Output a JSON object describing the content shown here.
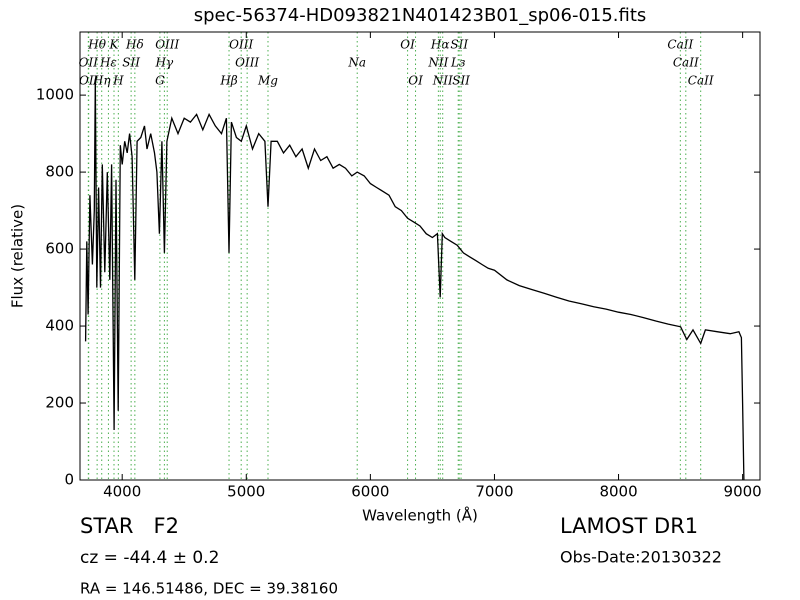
{
  "chart_data": {
    "type": "line",
    "title": "spec-56374-HD093821N401423B01_sp06-015.fits",
    "x_label": "Wavelength (Å)",
    "y_label": "Flux (relative)",
    "color": "#000000",
    "line_color": "#4caf50",
    "xlim": [
      3660,
      9140
    ],
    "ylim": [
      0,
      1164
    ],
    "xticks": [
      4000,
      5000,
      6000,
      7000,
      8000,
      9000
    ],
    "yticks": [
      0,
      200,
      400,
      600,
      800,
      1000
    ],
    "grid": false,
    "x": [
      3705,
      3715,
      3725,
      3740,
      3760,
      3775,
      3783,
      3795,
      3810,
      3825,
      3840,
      3860,
      3880,
      3900,
      3915,
      3935,
      3950,
      3968,
      3985,
      4000,
      4020,
      4040,
      4060,
      4080,
      4102,
      4120,
      4150,
      4180,
      4200,
      4230,
      4260,
      4280,
      4300,
      4320,
      4340,
      4360,
      4400,
      4450,
      4500,
      4550,
      4600,
      4650,
      4700,
      4750,
      4800,
      4840,
      4861,
      4880,
      4920,
      4960,
      5000,
      5050,
      5100,
      5150,
      5175,
      5200,
      5250,
      5300,
      5350,
      5400,
      5450,
      5500,
      5550,
      5600,
      5650,
      5700,
      5750,
      5800,
      5850,
      5894,
      5950,
      6000,
      6050,
      6100,
      6150,
      6200,
      6250,
      6300,
      6350,
      6400,
      6450,
      6500,
      6540,
      6563,
      6580,
      6600,
      6650,
      6700,
      6750,
      6800,
      6850,
      6900,
      6950,
      7000,
      7100,
      7200,
      7300,
      7400,
      7500,
      7600,
      7700,
      7800,
      7900,
      8000,
      8100,
      8200,
      8300,
      8400,
      8500,
      8550,
      8600,
      8662,
      8700,
      8800,
      8900,
      8970,
      8990,
      9000,
      9010
    ],
    "values": [
      360,
      620,
      430,
      740,
      560,
      700,
      1040,
      500,
      760,
      500,
      820,
      540,
      800,
      520,
      820,
      130,
      780,
      180,
      870,
      820,
      880,
      850,
      900,
      840,
      520,
      880,
      890,
      920,
      860,
      900,
      850,
      800,
      640,
      880,
      590,
      880,
      940,
      900,
      940,
      930,
      950,
      910,
      950,
      920,
      900,
      940,
      590,
      930,
      890,
      880,
      920,
      860,
      900,
      880,
      710,
      880,
      880,
      850,
      870,
      840,
      860,
      810,
      860,
      830,
      840,
      810,
      820,
      810,
      790,
      800,
      790,
      770,
      760,
      750,
      740,
      710,
      700,
      680,
      670,
      660,
      640,
      630,
      640,
      475,
      640,
      630,
      620,
      610,
      590,
      580,
      570,
      560,
      550,
      545,
      520,
      505,
      495,
      485,
      475,
      465,
      458,
      450,
      444,
      436,
      430,
      422,
      413,
      405,
      398,
      365,
      390,
      355,
      390,
      385,
      380,
      385,
      370,
      200,
      0
    ],
    "spectral_line_groups": [
      [
        {
          "label": "Hθ",
          "wavelength": 3798
        },
        {
          "label": "K",
          "wavelength": 3934
        },
        {
          "label": "Hδ",
          "wavelength": 4102
        },
        {
          "label": "OIII",
          "wavelength": 4363
        },
        {
          "label": "OIII",
          "wavelength": 4959
        },
        {
          "label": "OI",
          "wavelength": 6300
        },
        {
          "label": "Hα",
          "wavelength": 6563
        },
        {
          "label": "SII",
          "wavelength": 6716
        },
        {
          "label": "CaII",
          "wavelength": 8498
        }
      ],
      [
        {
          "label": "OII",
          "wavelength": 3727
        },
        {
          "label": "Hε",
          "wavelength": 3889
        },
        {
          "label": "SII",
          "wavelength": 4072
        },
        {
          "label": "Hγ",
          "wavelength": 4340
        },
        {
          "label": "OIII",
          "wavelength": 5007
        },
        {
          "label": "Na",
          "wavelength": 5894
        },
        {
          "label": "NII",
          "wavelength": 6548
        },
        {
          "label": "Lз",
          "wavelength": 6708
        },
        {
          "label": "CaII",
          "wavelength": 8542
        }
      ],
      [
        {
          "label": "OII",
          "wavelength": 3730
        },
        {
          "label": "Hη",
          "wavelength": 3835
        },
        {
          "label": "H",
          "wavelength": 3969
        },
        {
          "label": "G",
          "wavelength": 4304
        },
        {
          "label": "Hβ",
          "wavelength": 4861
        },
        {
          "label": "Mg",
          "wavelength": 5175
        },
        {
          "label": "OI",
          "wavelength": 6364
        },
        {
          "label": "NII",
          "wavelength": 6583
        },
        {
          "label": "SII",
          "wavelength": 6731
        },
        {
          "label": "CaII",
          "wavelength": 8662
        }
      ]
    ],
    "annotations": {
      "object": "STAR   F2",
      "cz": "cz = -44.4 ± 0.2",
      "coords": "RA = 146.51486, DEC = 39.38160",
      "survey": "LAMOST DR1",
      "obs_date": "Obs-Date:20130322"
    }
  }
}
